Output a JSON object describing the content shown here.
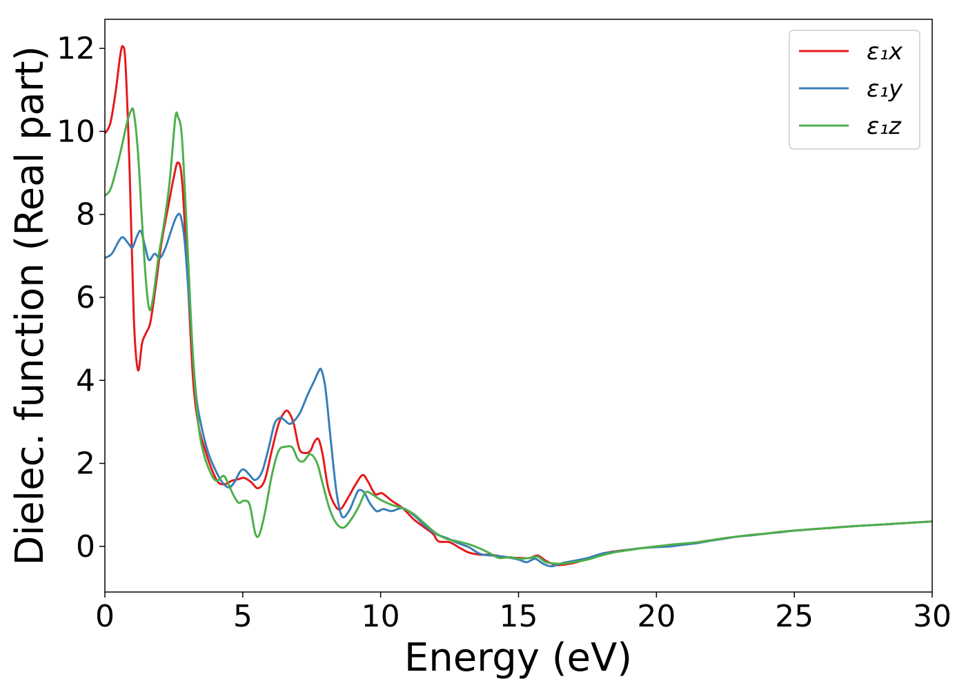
{
  "chart_data": {
    "type": "line",
    "xlabel": "Energy (eV)",
    "ylabel": "Dielec. function (Real part)",
    "xlim": [
      0,
      30
    ],
    "ylim": [
      -1.1,
      12.7
    ],
    "xticks": [
      0,
      5,
      10,
      15,
      20,
      25,
      30
    ],
    "yticks": [
      0,
      2,
      4,
      6,
      8,
      10,
      12
    ],
    "grid": false,
    "legend": "top-right",
    "series": [
      {
        "name": "ε₁x",
        "color": "#e41a1c",
        "points": [
          [
            0,
            9.95
          ],
          [
            0.2,
            10.2
          ],
          [
            0.4,
            11.0
          ],
          [
            0.55,
            11.8
          ],
          [
            0.65,
            12.05
          ],
          [
            0.75,
            11.6
          ],
          [
            0.9,
            9.0
          ],
          [
            1.05,
            5.5
          ],
          [
            1.2,
            4.25
          ],
          [
            1.35,
            4.9
          ],
          [
            1.5,
            5.15
          ],
          [
            1.65,
            5.4
          ],
          [
            1.85,
            6.3
          ],
          [
            2.05,
            7.3
          ],
          [
            2.3,
            8.2
          ],
          [
            2.5,
            8.9
          ],
          [
            2.65,
            9.25
          ],
          [
            2.8,
            8.8
          ],
          [
            3.0,
            6.5
          ],
          [
            3.2,
            4.0
          ],
          [
            3.4,
            2.9
          ],
          [
            3.6,
            2.4
          ],
          [
            3.85,
            1.9
          ],
          [
            4.1,
            1.55
          ],
          [
            4.35,
            1.5
          ],
          [
            4.6,
            1.58
          ],
          [
            4.85,
            1.62
          ],
          [
            5.05,
            1.65
          ],
          [
            5.3,
            1.55
          ],
          [
            5.55,
            1.4
          ],
          [
            5.8,
            1.6
          ],
          [
            6.05,
            2.3
          ],
          [
            6.3,
            2.95
          ],
          [
            6.5,
            3.22
          ],
          [
            6.65,
            3.25
          ],
          [
            6.85,
            2.95
          ],
          [
            7.05,
            2.35
          ],
          [
            7.25,
            2.25
          ],
          [
            7.45,
            2.3
          ],
          [
            7.6,
            2.52
          ],
          [
            7.75,
            2.58
          ],
          [
            7.9,
            2.2
          ],
          [
            8.1,
            1.4
          ],
          [
            8.35,
            0.98
          ],
          [
            8.55,
            0.9
          ],
          [
            8.8,
            1.15
          ],
          [
            9.1,
            1.5
          ],
          [
            9.35,
            1.72
          ],
          [
            9.55,
            1.55
          ],
          [
            9.8,
            1.26
          ],
          [
            10.05,
            1.28
          ],
          [
            10.4,
            1.1
          ],
          [
            10.8,
            0.92
          ],
          [
            11.2,
            0.65
          ],
          [
            11.6,
            0.45
          ],
          [
            11.9,
            0.3
          ],
          [
            12.1,
            0.12
          ],
          [
            12.5,
            0.1
          ],
          [
            12.9,
            -0.05
          ],
          [
            13.2,
            -0.15
          ],
          [
            13.6,
            -0.2
          ],
          [
            14.0,
            -0.2
          ],
          [
            14.5,
            -0.26
          ],
          [
            15.0,
            -0.28
          ],
          [
            15.4,
            -0.28
          ],
          [
            15.7,
            -0.22
          ],
          [
            16.0,
            -0.35
          ],
          [
            16.4,
            -0.45
          ],
          [
            17.0,
            -0.4
          ],
          [
            17.5,
            -0.3
          ],
          [
            18.0,
            -0.18
          ],
          [
            18.5,
            -0.12
          ],
          [
            19.0,
            -0.08
          ],
          [
            19.5,
            -0.04
          ],
          [
            20.0,
            0.0
          ],
          [
            20.5,
            0.03
          ],
          [
            21.0,
            0.06
          ],
          [
            21.5,
            0.1
          ],
          [
            22.0,
            0.15
          ],
          [
            22.5,
            0.2
          ],
          [
            23.0,
            0.24
          ],
          [
            23.5,
            0.28
          ],
          [
            24.0,
            0.31
          ],
          [
            24.5,
            0.35
          ],
          [
            25.0,
            0.38
          ],
          [
            26.0,
            0.43
          ],
          [
            27.0,
            0.48
          ],
          [
            28.0,
            0.52
          ],
          [
            29.0,
            0.56
          ],
          [
            30.0,
            0.6
          ]
        ]
      },
      {
        "name": "ε₁y",
        "color": "#377eb8",
        "points": [
          [
            0,
            6.95
          ],
          [
            0.25,
            7.05
          ],
          [
            0.5,
            7.35
          ],
          [
            0.65,
            7.45
          ],
          [
            0.85,
            7.3
          ],
          [
            1.0,
            7.2
          ],
          [
            1.15,
            7.45
          ],
          [
            1.3,
            7.6
          ],
          [
            1.45,
            7.25
          ],
          [
            1.6,
            6.9
          ],
          [
            1.8,
            7.05
          ],
          [
            2.0,
            6.95
          ],
          [
            2.2,
            7.2
          ],
          [
            2.4,
            7.6
          ],
          [
            2.6,
            7.95
          ],
          [
            2.75,
            7.95
          ],
          [
            2.9,
            7.3
          ],
          [
            3.1,
            5.5
          ],
          [
            3.3,
            3.7
          ],
          [
            3.5,
            2.9
          ],
          [
            3.75,
            2.25
          ],
          [
            4.0,
            1.85
          ],
          [
            4.25,
            1.55
          ],
          [
            4.5,
            1.42
          ],
          [
            4.7,
            1.55
          ],
          [
            4.9,
            1.8
          ],
          [
            5.05,
            1.85
          ],
          [
            5.25,
            1.72
          ],
          [
            5.45,
            1.6
          ],
          [
            5.7,
            1.8
          ],
          [
            5.95,
            2.4
          ],
          [
            6.15,
            2.95
          ],
          [
            6.35,
            3.1
          ],
          [
            6.5,
            3.05
          ],
          [
            6.7,
            2.95
          ],
          [
            6.9,
            3.05
          ],
          [
            7.1,
            3.25
          ],
          [
            7.35,
            3.65
          ],
          [
            7.6,
            4.0
          ],
          [
            7.75,
            4.22
          ],
          [
            7.85,
            4.25
          ],
          [
            8.0,
            3.8
          ],
          [
            8.2,
            2.5
          ],
          [
            8.4,
            1.3
          ],
          [
            8.6,
            0.72
          ],
          [
            8.85,
            0.85
          ],
          [
            9.05,
            1.15
          ],
          [
            9.2,
            1.35
          ],
          [
            9.4,
            1.3
          ],
          [
            9.6,
            1.05
          ],
          [
            9.85,
            0.85
          ],
          [
            10.1,
            0.9
          ],
          [
            10.4,
            0.85
          ],
          [
            10.8,
            0.92
          ],
          [
            11.2,
            0.75
          ],
          [
            11.6,
            0.5
          ],
          [
            12.0,
            0.3
          ],
          [
            12.4,
            0.2
          ],
          [
            12.8,
            0.08
          ],
          [
            13.2,
            -0.02
          ],
          [
            13.6,
            -0.18
          ],
          [
            14.0,
            -0.22
          ],
          [
            14.5,
            -0.25
          ],
          [
            15.0,
            -0.32
          ],
          [
            15.3,
            -0.38
          ],
          [
            15.6,
            -0.3
          ],
          [
            15.9,
            -0.42
          ],
          [
            16.2,
            -0.48
          ],
          [
            16.6,
            -0.4
          ],
          [
            17.0,
            -0.35
          ],
          [
            17.5,
            -0.28
          ],
          [
            18.0,
            -0.18
          ],
          [
            18.5,
            -0.13
          ],
          [
            19.0,
            -0.08
          ],
          [
            19.5,
            -0.04
          ],
          [
            20.0,
            -0.02
          ],
          [
            20.5,
            0.0
          ],
          [
            21.0,
            0.04
          ],
          [
            21.5,
            0.08
          ],
          [
            22.0,
            0.14
          ],
          [
            22.5,
            0.19
          ],
          [
            23.0,
            0.24
          ],
          [
            23.5,
            0.27
          ],
          [
            24.0,
            0.31
          ],
          [
            24.5,
            0.34
          ],
          [
            25.0,
            0.38
          ],
          [
            26.0,
            0.43
          ],
          [
            27.0,
            0.48
          ],
          [
            28.0,
            0.52
          ],
          [
            29.0,
            0.56
          ],
          [
            30.0,
            0.6
          ]
        ]
      },
      {
        "name": "ε₁z",
        "color": "#4daf4a",
        "points": [
          [
            0,
            8.45
          ],
          [
            0.2,
            8.6
          ],
          [
            0.4,
            9.05
          ],
          [
            0.6,
            9.6
          ],
          [
            0.8,
            10.2
          ],
          [
            0.95,
            10.5
          ],
          [
            1.05,
            10.45
          ],
          [
            1.2,
            9.5
          ],
          [
            1.35,
            7.8
          ],
          [
            1.5,
            6.3
          ],
          [
            1.62,
            5.7
          ],
          [
            1.75,
            6.0
          ],
          [
            1.95,
            7.0
          ],
          [
            2.15,
            7.8
          ],
          [
            2.35,
            8.8
          ],
          [
            2.55,
            10.3
          ],
          [
            2.65,
            10.35
          ],
          [
            2.8,
            9.8
          ],
          [
            3.0,
            7.2
          ],
          [
            3.2,
            4.5
          ],
          [
            3.4,
            2.9
          ],
          [
            3.6,
            2.2
          ],
          [
            3.85,
            1.75
          ],
          [
            4.05,
            1.58
          ],
          [
            4.3,
            1.7
          ],
          [
            4.45,
            1.55
          ],
          [
            4.65,
            1.25
          ],
          [
            4.85,
            1.05
          ],
          [
            5.05,
            1.1
          ],
          [
            5.25,
            1.0
          ],
          [
            5.45,
            0.32
          ],
          [
            5.6,
            0.28
          ],
          [
            5.8,
            0.8
          ],
          [
            6.05,
            1.7
          ],
          [
            6.3,
            2.3
          ],
          [
            6.55,
            2.4
          ],
          [
            6.8,
            2.38
          ],
          [
            7.0,
            2.1
          ],
          [
            7.2,
            2.05
          ],
          [
            7.45,
            2.22
          ],
          [
            7.7,
            2.0
          ],
          [
            7.9,
            1.5
          ],
          [
            8.15,
            0.9
          ],
          [
            8.4,
            0.55
          ],
          [
            8.65,
            0.45
          ],
          [
            8.9,
            0.62
          ],
          [
            9.2,
            0.95
          ],
          [
            9.45,
            1.3
          ],
          [
            9.7,
            1.25
          ],
          [
            10.0,
            1.12
          ],
          [
            10.4,
            1.0
          ],
          [
            10.8,
            0.92
          ],
          [
            11.2,
            0.78
          ],
          [
            11.6,
            0.55
          ],
          [
            12.0,
            0.32
          ],
          [
            12.4,
            0.18
          ],
          [
            12.8,
            0.12
          ],
          [
            13.2,
            0.05
          ],
          [
            13.6,
            -0.05
          ],
          [
            14.0,
            -0.18
          ],
          [
            14.3,
            -0.28
          ],
          [
            14.7,
            -0.26
          ],
          [
            15.0,
            -0.3
          ],
          [
            15.4,
            -0.28
          ],
          [
            15.7,
            -0.25
          ],
          [
            16.0,
            -0.38
          ],
          [
            16.5,
            -0.42
          ],
          [
            17.0,
            -0.38
          ],
          [
            17.5,
            -0.32
          ],
          [
            18.0,
            -0.22
          ],
          [
            18.5,
            -0.14
          ],
          [
            19.0,
            -0.09
          ],
          [
            19.5,
            -0.04
          ],
          [
            20.0,
            0.0
          ],
          [
            20.5,
            0.04
          ],
          [
            21.0,
            0.07
          ],
          [
            21.5,
            0.1
          ],
          [
            22.0,
            0.15
          ],
          [
            22.5,
            0.2
          ],
          [
            23.0,
            0.24
          ],
          [
            23.5,
            0.28
          ],
          [
            24.0,
            0.31
          ],
          [
            24.5,
            0.35
          ],
          [
            25.0,
            0.38
          ],
          [
            26.0,
            0.43
          ],
          [
            27.0,
            0.48
          ],
          [
            28.0,
            0.52
          ],
          [
            29.0,
            0.56
          ],
          [
            30.0,
            0.6
          ]
        ]
      }
    ]
  }
}
